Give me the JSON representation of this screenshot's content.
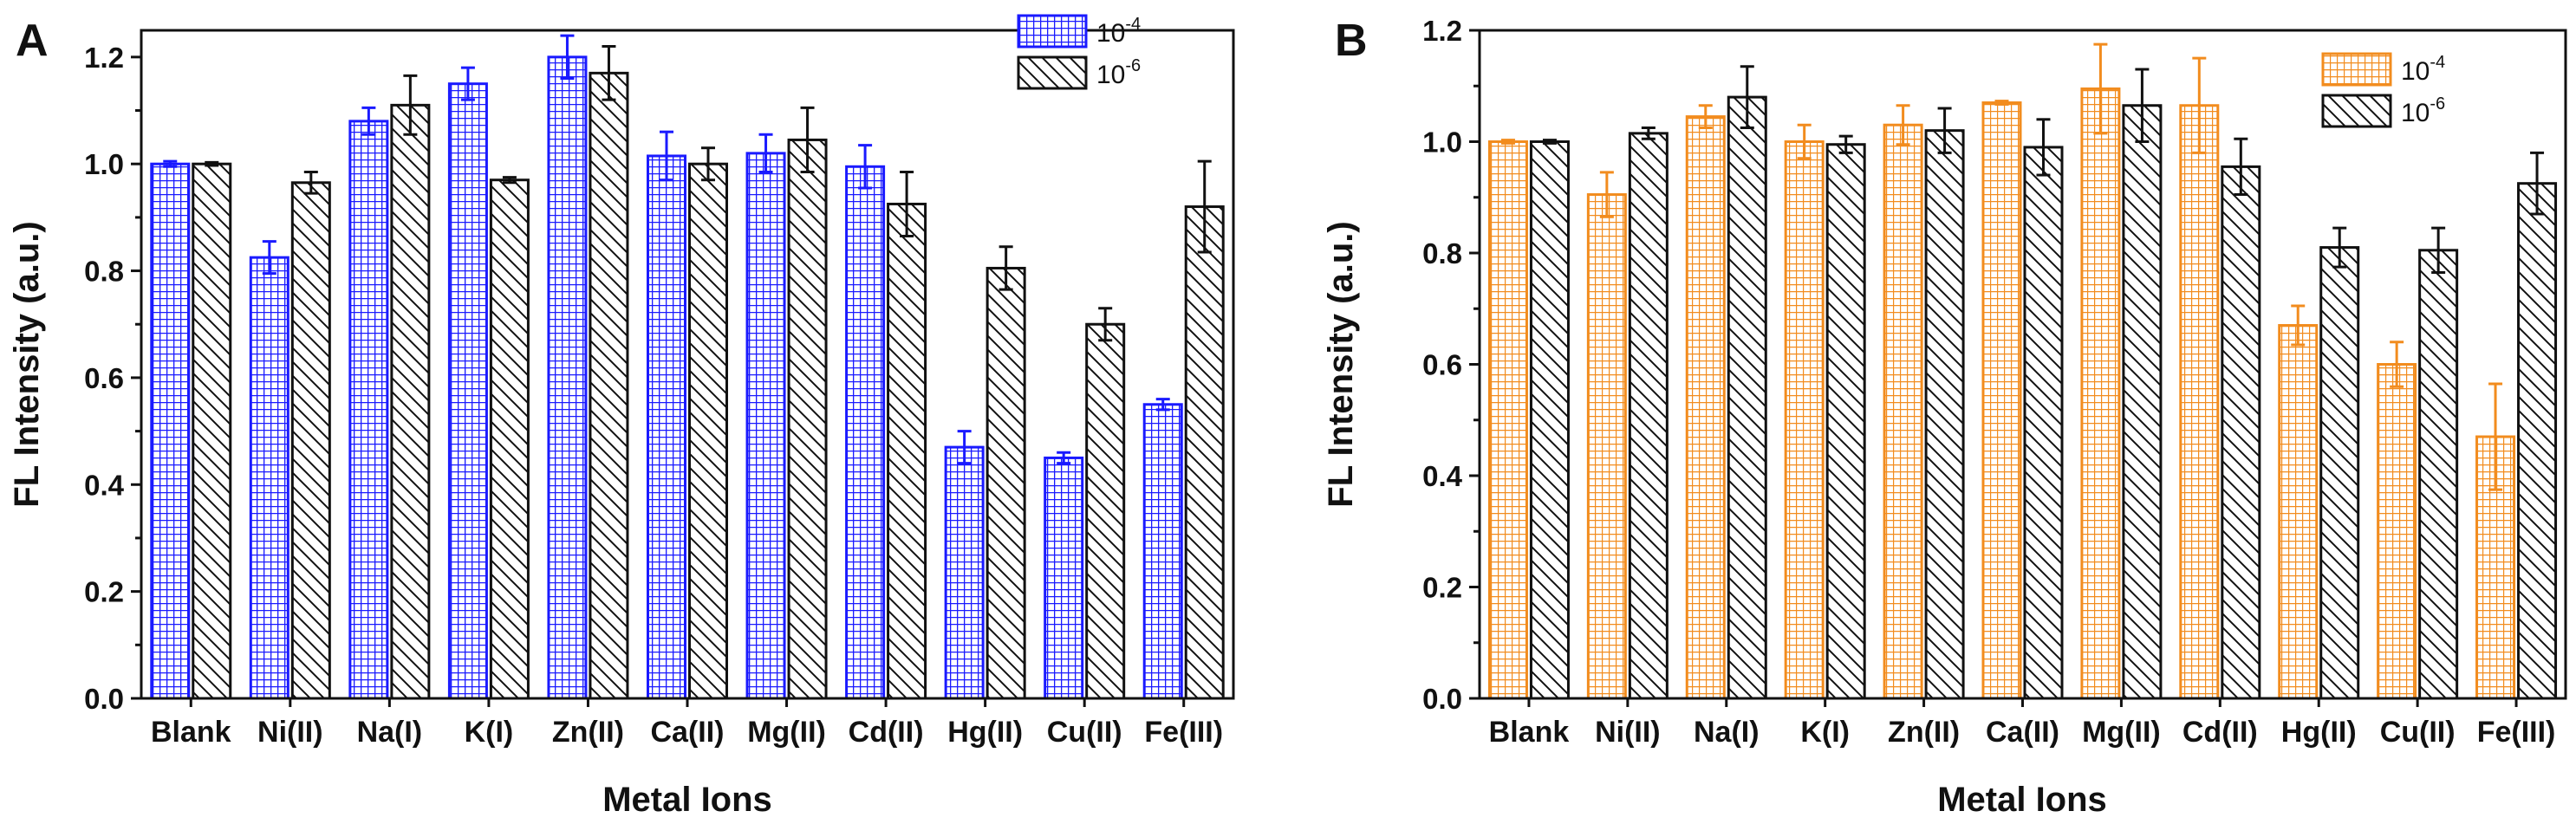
{
  "chart_data": [
    {
      "panel": "A",
      "type": "bar",
      "xlabel": "Metal Ions",
      "ylabel": "FL Intensity (a.u.)",
      "ylim": [
        0,
        1.25
      ],
      "yticks": [
        "0.0",
        "0.2",
        "0.4",
        "0.6",
        "0.8",
        "1.0",
        "1.2"
      ],
      "categories": [
        "Blank",
        "Ni(II)",
        "Na(I)",
        "K(I)",
        "Zn(II)",
        "Ca(II)",
        "Mg(II)",
        "Cd(II)",
        "Hg(II)",
        "Cu(II)",
        "Fe(III)"
      ],
      "legend_position": "top-right",
      "series": [
        {
          "name": "10-4",
          "base": "10",
          "exp": "-4",
          "color": "#1a1aff",
          "pattern": "grid",
          "values": [
            1.0,
            0.825,
            1.08,
            1.15,
            1.2,
            1.015,
            1.02,
            0.995,
            0.47,
            0.45,
            0.55
          ],
          "errors": [
            0.005,
            0.03,
            0.025,
            0.03,
            0.04,
            0.045,
            0.035,
            0.04,
            0.03,
            0.01,
            0.01
          ]
        },
        {
          "name": "10-6",
          "base": "10",
          "exp": "-6",
          "color": "#111111",
          "pattern": "hatch",
          "values": [
            1.0,
            0.965,
            1.11,
            0.97,
            1.17,
            1.0,
            1.045,
            0.925,
            0.805,
            0.7,
            0.92
          ],
          "errors": [
            0.003,
            0.02,
            0.055,
            0.005,
            0.05,
            0.03,
            0.06,
            0.06,
            0.04,
            0.03,
            0.085
          ]
        }
      ]
    },
    {
      "panel": "B",
      "type": "bar",
      "xlabel": "Metal Ions",
      "ylabel": "FL Intensity (a.u.)",
      "ylim": [
        0,
        1.2
      ],
      "yticks": [
        "0.0",
        "0.2",
        "0.4",
        "0.6",
        "0.8",
        "1.0",
        "1.2"
      ],
      "categories": [
        "Blank",
        "Ni(II)",
        "Na(I)",
        "K(I)",
        "Zn(II)",
        "Ca(II)",
        "Mg(II)",
        "Cd(II)",
        "Hg(II)",
        "Cu(II)",
        "Fe(III)"
      ],
      "legend_position": "top-right",
      "series": [
        {
          "name": "10-4",
          "base": "10",
          "exp": "-4",
          "color": "#f28c1e",
          "pattern": "grid",
          "values": [
            1.0,
            0.905,
            1.045,
            1.0,
            1.03,
            1.07,
            1.095,
            1.065,
            0.67,
            0.6,
            0.47
          ],
          "errors": [
            0.003,
            0.04,
            0.02,
            0.03,
            0.035,
            0.003,
            0.08,
            0.085,
            0.035,
            0.04,
            0.095
          ]
        },
        {
          "name": "10-6",
          "base": "10",
          "exp": "-6",
          "color": "#111111",
          "pattern": "hatch",
          "values": [
            1.0,
            1.015,
            1.08,
            0.995,
            1.02,
            0.99,
            1.065,
            0.955,
            0.81,
            0.805,
            0.925
          ],
          "errors": [
            0.003,
            0.01,
            0.055,
            0.015,
            0.04,
            0.05,
            0.065,
            0.05,
            0.035,
            0.04,
            0.055
          ]
        }
      ]
    }
  ]
}
